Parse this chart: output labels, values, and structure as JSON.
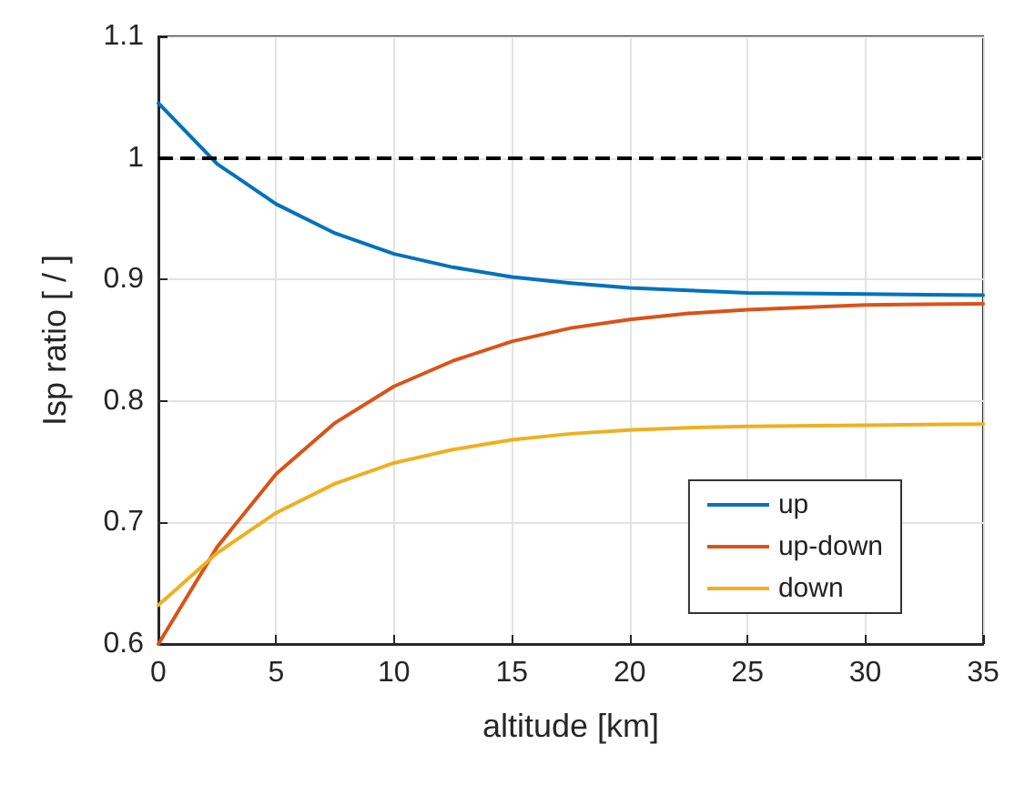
{
  "chart_data": {
    "type": "line",
    "xlabel": "altitude [km]",
    "ylabel": "Isp ratio [ / ]",
    "x": [
      0,
      2.5,
      5,
      7.5,
      10,
      12.5,
      15,
      17.5,
      20,
      22.5,
      25,
      30,
      35
    ],
    "series": [
      {
        "name": "up",
        "color": "#0072bd",
        "values": [
          1.045,
          0.995,
          0.962,
          0.938,
          0.921,
          0.91,
          0.902,
          0.897,
          0.893,
          0.891,
          0.889,
          0.888,
          0.887
        ]
      },
      {
        "name": "up-down",
        "color": "#d95319",
        "values": [
          0.6,
          0.68,
          0.74,
          0.782,
          0.812,
          0.833,
          0.849,
          0.86,
          0.867,
          0.872,
          0.875,
          0.879,
          0.88
        ]
      },
      {
        "name": "down",
        "color": "#edb120",
        "values": [
          0.632,
          0.675,
          0.708,
          0.732,
          0.749,
          0.76,
          0.768,
          0.773,
          0.776,
          0.778,
          0.779,
          0.78,
          0.781
        ]
      }
    ],
    "xlim": [
      0,
      35
    ],
    "xticks": [
      0,
      5,
      10,
      15,
      20,
      25,
      30,
      35
    ],
    "ylim": [
      0.6,
      1.1
    ],
    "yticks": [
      0.6,
      0.7,
      0.8,
      0.9,
      1,
      1.1
    ],
    "ref_lines": [
      {
        "axis": "y",
        "value": 1,
        "color": "#000000",
        "line_style": "dashed"
      }
    ],
    "grid": true,
    "legend": "bottom right",
    "marker": "none",
    "line_style": "solid"
  }
}
